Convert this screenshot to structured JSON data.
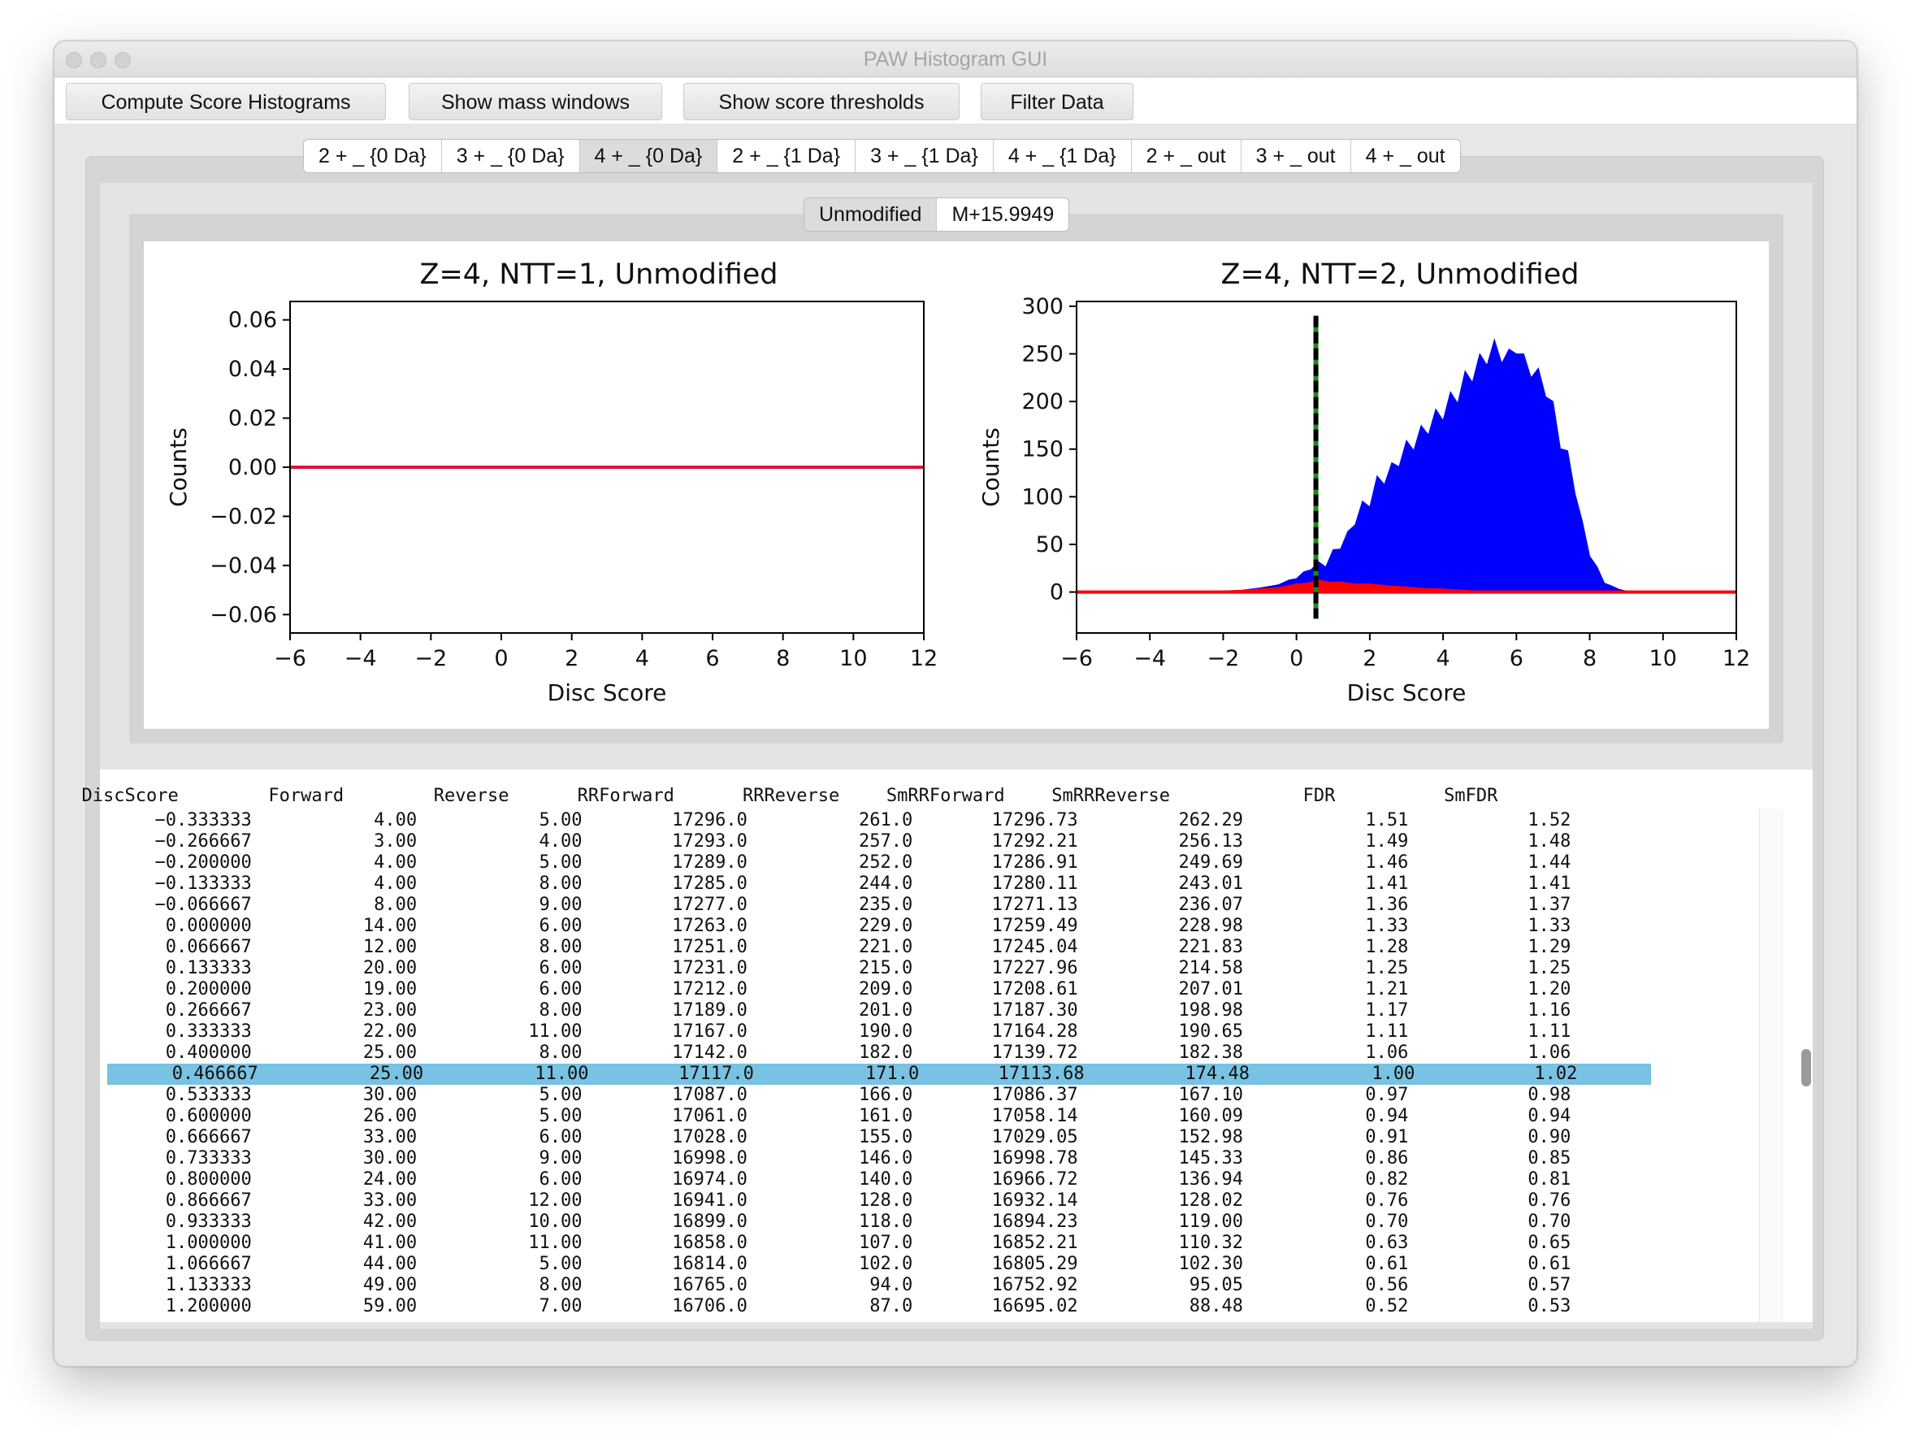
{
  "window": {
    "title": "PAW Histogram GUI"
  },
  "toolbar": {
    "buttons": [
      "Compute Score Histograms",
      "Show mass windows",
      "Show score thresholds",
      "Filter Data"
    ]
  },
  "tabs": {
    "items": [
      "2 + _ {0 Da}",
      "3 + _ {0 Da}",
      "4 + _ {0 Da}",
      "2 + _ {1 Da}",
      "3 + _ {1 Da}",
      "4 + _ {1 Da}",
      "2 + _ out",
      "3 + _ out",
      "4 + _ out"
    ],
    "selected": 2
  },
  "subtabs": {
    "items": [
      "Unmodified",
      "M+15.9949"
    ],
    "selected": 0
  },
  "chart_data": [
    {
      "type": "line",
      "title": "Z=4, NTT=1, Unmodified",
      "xlabel": "Disc Score",
      "ylabel": "Counts",
      "xlim": [
        -6,
        12
      ],
      "ylim": [
        -0.0675,
        0.0675
      ],
      "xticks": [
        "−6",
        "−4",
        "−2",
        "0",
        "2",
        "4",
        "6",
        "8",
        "10",
        "12"
      ],
      "yticks": [
        "0.06",
        "0.04",
        "0.02",
        "0.00",
        "−0.02",
        "−0.04",
        "−0.06"
      ],
      "ytick_values": [
        0.06,
        0.04,
        0.02,
        0.0,
        -0.02,
        -0.04,
        -0.06
      ],
      "series": [
        {
          "color": "#dc143c",
          "x": [
            -6,
            12
          ],
          "y": [
            0,
            0
          ]
        }
      ],
      "grid": false
    },
    {
      "type": "area",
      "title": "Z=4, NTT=2, Unmodified",
      "xlabel": "Disc Score",
      "ylabel": "Counts",
      "xlim": [
        -6,
        12
      ],
      "ylim": [
        -43,
        305
      ],
      "xticks": [
        "−6",
        "−4",
        "−2",
        "0",
        "2",
        "4",
        "6",
        "8",
        "10",
        "12"
      ],
      "yticks": [
        "300",
        "250",
        "200",
        "150",
        "100",
        "50",
        "0"
      ],
      "ytick_values": [
        300,
        250,
        200,
        150,
        100,
        50,
        0
      ],
      "threshold_x": 0.53,
      "threshold_yrange": [
        -28,
        290
      ],
      "series": [
        {
          "color": "#0000ff",
          "x": [
            -2.0,
            -1.5,
            -1.0,
            -0.5,
            -0.2,
            0.0,
            0.2,
            0.4,
            0.6,
            0.8,
            1.0,
            1.2,
            1.4,
            1.6,
            1.8,
            2.0,
            2.2,
            2.4,
            2.6,
            2.8,
            3.0,
            3.2,
            3.4,
            3.6,
            3.8,
            4.0,
            4.2,
            4.4,
            4.6,
            4.8,
            5.0,
            5.2,
            5.4,
            5.6,
            5.8,
            6.0,
            6.2,
            6.4,
            6.6,
            6.8,
            7.0,
            7.2,
            7.4,
            7.6,
            7.8,
            8.0,
            8.2,
            8.4,
            8.6,
            8.8,
            9.0,
            9.3
          ],
          "y": [
            1,
            2,
            4,
            8,
            12,
            15,
            20,
            25,
            30,
            28,
            42,
            48,
            60,
            75,
            90,
            95,
            115,
            120,
            128,
            140,
            150,
            158,
            165,
            175,
            182,
            190,
            200,
            208,
            222,
            230,
            240,
            248,
            255,
            250,
            245,
            260,
            240,
            235,
            225,
            215,
            190,
            160,
            140,
            110,
            70,
            40,
            25,
            10,
            6,
            3,
            1,
            0
          ]
        },
        {
          "color": "#ff0000",
          "x": [
            -2.0,
            -1.5,
            -1.0,
            -0.5,
            0.0,
            0.3,
            0.6,
            0.9,
            1.2,
            1.6,
            2.0,
            2.5,
            3.0,
            3.5,
            4.0,
            5.0,
            6.0
          ],
          "y": [
            1,
            2,
            3,
            5,
            8,
            10,
            12,
            11,
            10,
            9,
            8,
            7,
            5,
            4,
            3,
            1,
            0
          ]
        },
        {
          "color": "#ff0000",
          "x": [
            -6,
            12
          ],
          "y": [
            0,
            0
          ]
        }
      ],
      "grid": false
    }
  ],
  "table": {
    "columns": [
      "DiscScore",
      "Forward",
      "Reverse",
      "RRForward",
      "RRReverse",
      "SmRRForward",
      "SmRRReverse",
      "FDR",
      "SmFDR"
    ],
    "rows": [
      [
        "−0.333333",
        "4.00",
        "5.00",
        "17296.0",
        "261.0",
        "17296.73",
        "262.29",
        "1.51",
        "1.52"
      ],
      [
        "−0.266667",
        "3.00",
        "4.00",
        "17293.0",
        "257.0",
        "17292.21",
        "256.13",
        "1.49",
        "1.48"
      ],
      [
        "−0.200000",
        "4.00",
        "5.00",
        "17289.0",
        "252.0",
        "17286.91",
        "249.69",
        "1.46",
        "1.44"
      ],
      [
        "−0.133333",
        "4.00",
        "8.00",
        "17285.0",
        "244.0",
        "17280.11",
        "243.01",
        "1.41",
        "1.41"
      ],
      [
        "−0.066667",
        "8.00",
        "9.00",
        "17277.0",
        "235.0",
        "17271.13",
        "236.07",
        "1.36",
        "1.37"
      ],
      [
        "0.000000",
        "14.00",
        "6.00",
        "17263.0",
        "229.0",
        "17259.49",
        "228.98",
        "1.33",
        "1.33"
      ],
      [
        "0.066667",
        "12.00",
        "8.00",
        "17251.0",
        "221.0",
        "17245.04",
        "221.83",
        "1.28",
        "1.29"
      ],
      [
        "0.133333",
        "20.00",
        "6.00",
        "17231.0",
        "215.0",
        "17227.96",
        "214.58",
        "1.25",
        "1.25"
      ],
      [
        "0.200000",
        "19.00",
        "6.00",
        "17212.0",
        "209.0",
        "17208.61",
        "207.01",
        "1.21",
        "1.20"
      ],
      [
        "0.266667",
        "23.00",
        "8.00",
        "17189.0",
        "201.0",
        "17187.30",
        "198.98",
        "1.17",
        "1.16"
      ],
      [
        "0.333333",
        "22.00",
        "11.00",
        "17167.0",
        "190.0",
        "17164.28",
        "190.65",
        "1.11",
        "1.11"
      ],
      [
        "0.400000",
        "25.00",
        "8.00",
        "17142.0",
        "182.0",
        "17139.72",
        "182.38",
        "1.06",
        "1.06"
      ],
      [
        "0.466667",
        "25.00",
        "11.00",
        "17117.0",
        "171.0",
        "17113.68",
        "174.48",
        "1.00",
        "1.02"
      ],
      [
        "0.533333",
        "30.00",
        "5.00",
        "17087.0",
        "166.0",
        "17086.37",
        "167.10",
        "0.97",
        "0.98"
      ],
      [
        "0.600000",
        "26.00",
        "5.00",
        "17061.0",
        "161.0",
        "17058.14",
        "160.09",
        "0.94",
        "0.94"
      ],
      [
        "0.666667",
        "33.00",
        "6.00",
        "17028.0",
        "155.0",
        "17029.05",
        "152.98",
        "0.91",
        "0.90"
      ],
      [
        "0.733333",
        "30.00",
        "9.00",
        "16998.0",
        "146.0",
        "16998.78",
        "145.33",
        "0.86",
        "0.85"
      ],
      [
        "0.800000",
        "24.00",
        "6.00",
        "16974.0",
        "140.0",
        "16966.72",
        "136.94",
        "0.82",
        "0.81"
      ],
      [
        "0.866667",
        "33.00",
        "12.00",
        "16941.0",
        "128.0",
        "16932.14",
        "128.02",
        "0.76",
        "0.76"
      ],
      [
        "0.933333",
        "42.00",
        "10.00",
        "16899.0",
        "118.0",
        "16894.23",
        "119.00",
        "0.70",
        "0.70"
      ],
      [
        "1.000000",
        "41.00",
        "11.00",
        "16858.0",
        "107.0",
        "16852.21",
        "110.32",
        "0.63",
        "0.65"
      ],
      [
        "1.066667",
        "44.00",
        "5.00",
        "16814.0",
        "102.0",
        "16805.29",
        "102.30",
        "0.61",
        "0.61"
      ],
      [
        "1.133333",
        "49.00",
        "8.00",
        "16765.0",
        "94.0",
        "16752.92",
        "95.05",
        "0.56",
        "0.57"
      ],
      [
        "1.200000",
        "59.00",
        "7.00",
        "16706.0",
        "87.0",
        "16695.02",
        "88.48",
        "0.52",
        "0.53"
      ]
    ],
    "highlighted_row": 12,
    "highlight_color": "#78c2e3"
  }
}
